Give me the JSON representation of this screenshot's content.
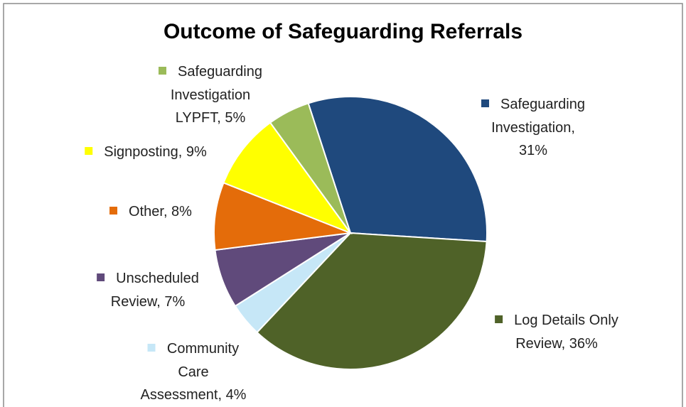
{
  "chart_data": {
    "type": "pie",
    "title": "Outcome of Safeguarding Referrals",
    "labels": [
      [
        "Safeguarding",
        "Investigation,",
        "31%"
      ],
      [
        "Log Details Only",
        "Review, 36%"
      ],
      [
        "Community",
        "Care",
        "Assessment, 4%"
      ],
      [
        "Unscheduled",
        "Review, 7%"
      ],
      [
        "Other, 8%"
      ],
      [
        "Signposting, 9%"
      ],
      [
        "Safeguarding",
        "Investigation",
        "LYPFT, 5%"
      ]
    ],
    "values": [
      31,
      36,
      4,
      7,
      8,
      9,
      5
    ],
    "colors": [
      "#1f497d",
      "#4f6228",
      "#c6e7f7",
      "#604a7b",
      "#e46c0a",
      "#ffff00",
      "#9bbb59"
    ]
  }
}
